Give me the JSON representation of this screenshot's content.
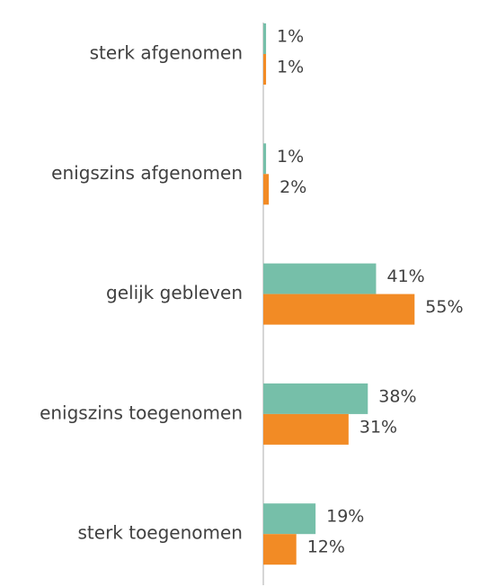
{
  "chart_data": {
    "type": "hbar",
    "categories": [
      "sterk afgenomen",
      "enigszins afgenomen",
      "gelijk gebleven",
      "enigszins toegenomen",
      "sterk toegenomen"
    ],
    "series": [
      {
        "color": "#76bfa9",
        "values": [
          1,
          1,
          41,
          38,
          19
        ],
        "value_labels": [
          "1%",
          "1%",
          "41%",
          "38%",
          "19%"
        ]
      },
      {
        "color": "#f28b25",
        "values": [
          1,
          2,
          55,
          31,
          12
        ],
        "value_labels": [
          "1%",
          "2%",
          "55%",
          "31%",
          "12%"
        ]
      }
    ]
  }
}
